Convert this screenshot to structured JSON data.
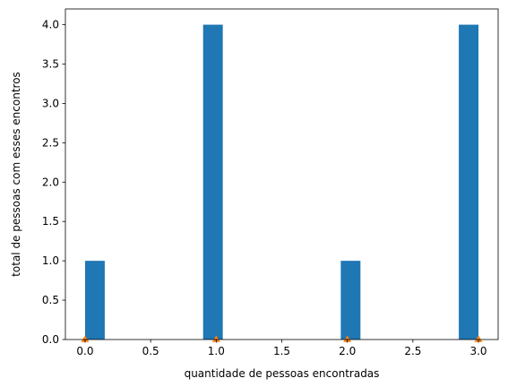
{
  "chart_data": {
    "type": "bar",
    "title": "",
    "xlabel": "quantidade de pessoas encontradas",
    "ylabel": "total de pessoas com esses encontros",
    "xlim": [
      -0.15,
      3.15
    ],
    "ylim": [
      0,
      4.2
    ],
    "grid": false,
    "bin_width": 0.15,
    "bars": [
      {
        "x": 0.0,
        "value": 1
      },
      {
        "x": 0.15,
        "value": 0
      },
      {
        "x": 0.3,
        "value": 0
      },
      {
        "x": 0.45,
        "value": 0
      },
      {
        "x": 0.6,
        "value": 0
      },
      {
        "x": 0.75,
        "value": 0
      },
      {
        "x": 0.9,
        "value": 4
      },
      {
        "x": 1.05,
        "value": 0
      },
      {
        "x": 1.2,
        "value": 0
      },
      {
        "x": 1.35,
        "value": 0
      },
      {
        "x": 1.5,
        "value": 0
      },
      {
        "x": 1.65,
        "value": 0
      },
      {
        "x": 1.8,
        "value": 0
      },
      {
        "x": 1.95,
        "value": 1
      },
      {
        "x": 2.1,
        "value": 0
      },
      {
        "x": 2.25,
        "value": 0
      },
      {
        "x": 2.4,
        "value": 0
      },
      {
        "x": 2.55,
        "value": 0
      },
      {
        "x": 2.7,
        "value": 0
      },
      {
        "x": 2.85,
        "value": 4
      }
    ],
    "markers": [
      {
        "x": 0.0,
        "y": 0
      },
      {
        "x": 1.0,
        "y": 0
      },
      {
        "x": 2.0,
        "y": 0
      },
      {
        "x": 3.0,
        "y": 0
      }
    ],
    "xticks": [
      {
        "value": 0.0,
        "label": "0.0"
      },
      {
        "value": 0.5,
        "label": "0.5"
      },
      {
        "value": 1.0,
        "label": "1.0"
      },
      {
        "value": 1.5,
        "label": "1.5"
      },
      {
        "value": 2.0,
        "label": "2.0"
      },
      {
        "value": 2.5,
        "label": "2.5"
      },
      {
        "value": 3.0,
        "label": "3.0"
      }
    ],
    "yticks": [
      {
        "value": 0.0,
        "label": "0.0"
      },
      {
        "value": 0.5,
        "label": "0.5"
      },
      {
        "value": 1.0,
        "label": "1.0"
      },
      {
        "value": 1.5,
        "label": "1.5"
      },
      {
        "value": 2.0,
        "label": "2.0"
      },
      {
        "value": 2.5,
        "label": "2.5"
      },
      {
        "value": 3.0,
        "label": "3.0"
      },
      {
        "value": 3.5,
        "label": "3.5"
      },
      {
        "value": 4.0,
        "label": "4.0"
      }
    ],
    "colors": {
      "bars": "#1f77b4",
      "markers": "#ff7f0e",
      "axes": "#000000"
    }
  }
}
